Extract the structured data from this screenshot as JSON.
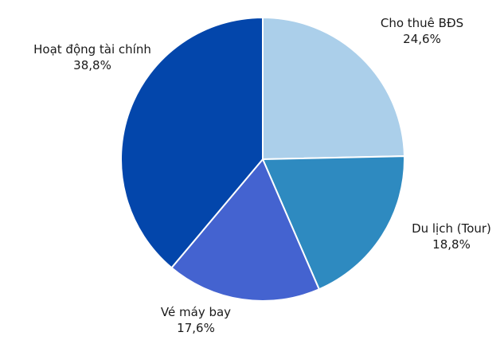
{
  "chart_data": {
    "type": "pie",
    "title": "",
    "slices": [
      {
        "label": "Cho thuê BĐS",
        "value": 24.6,
        "value_label": "24,6%",
        "color": "#abcfea"
      },
      {
        "label": "Du lịch (Tour)",
        "value": 18.8,
        "value_label": "18,8%",
        "color": "#2e8ac0"
      },
      {
        "label": "Vé máy bay",
        "value": 17.6,
        "value_label": "17,6%",
        "color": "#4463d0"
      },
      {
        "label": "Hoạt động tài chính",
        "value": 38.8,
        "value_label": "38,8%",
        "color": "#0346ab"
      }
    ],
    "legend": "none",
    "start_angle_deg": 0,
    "direction": "clockwise"
  }
}
